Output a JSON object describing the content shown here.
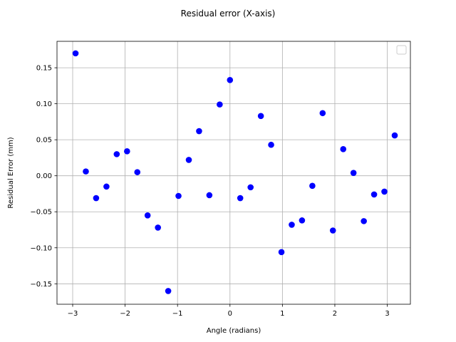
{
  "chart_data": {
    "type": "scatter",
    "title": "Residual error (X-axis)",
    "xlabel": "Angle (radians)",
    "ylabel": "Residual Error (mm)",
    "xlim": [
      -3.299,
      3.441
    ],
    "ylim": [
      -0.1784,
      0.1867
    ],
    "xticks": [
      -3,
      -2,
      -1,
      0,
      1,
      2,
      3
    ],
    "xtick_labels": [
      "−3",
      "−2",
      "−1",
      "0",
      "1",
      "2",
      "3"
    ],
    "yticks": [
      -0.15,
      -0.1,
      -0.05,
      0.0,
      0.05,
      0.1,
      0.15
    ],
    "ytick_labels": [
      "−0.15",
      "−0.10",
      "−0.05",
      "0.00",
      "0.05",
      "0.10",
      "0.15"
    ],
    "grid": true,
    "legend": "empty box, upper-right",
    "marker_color": "#0000ff",
    "series": [
      {
        "x": [
          -2.945,
          -2.749,
          -2.553,
          -2.356,
          -2.16,
          -1.963,
          -1.767,
          -1.571,
          -1.374,
          -1.178,
          -0.982,
          -0.785,
          -0.589,
          -0.393,
          -0.196,
          0.0,
          0.196,
          0.393,
          0.589,
          0.785,
          0.982,
          1.178,
          1.374,
          1.571,
          1.767,
          1.963,
          2.16,
          2.356,
          2.553,
          2.749,
          2.945,
          3.142
        ],
        "y": [
          0.17,
          0.006,
          -0.031,
          -0.015,
          0.03,
          0.034,
          0.005,
          -0.055,
          -0.072,
          -0.16,
          -0.028,
          0.022,
          0.062,
          -0.027,
          0.099,
          0.133,
          -0.031,
          -0.016,
          0.083,
          0.043,
          -0.106,
          -0.068,
          -0.062,
          -0.014,
          0.087,
          -0.076,
          0.037,
          0.004,
          -0.063,
          -0.026,
          -0.022,
          0.056
        ]
      }
    ]
  }
}
